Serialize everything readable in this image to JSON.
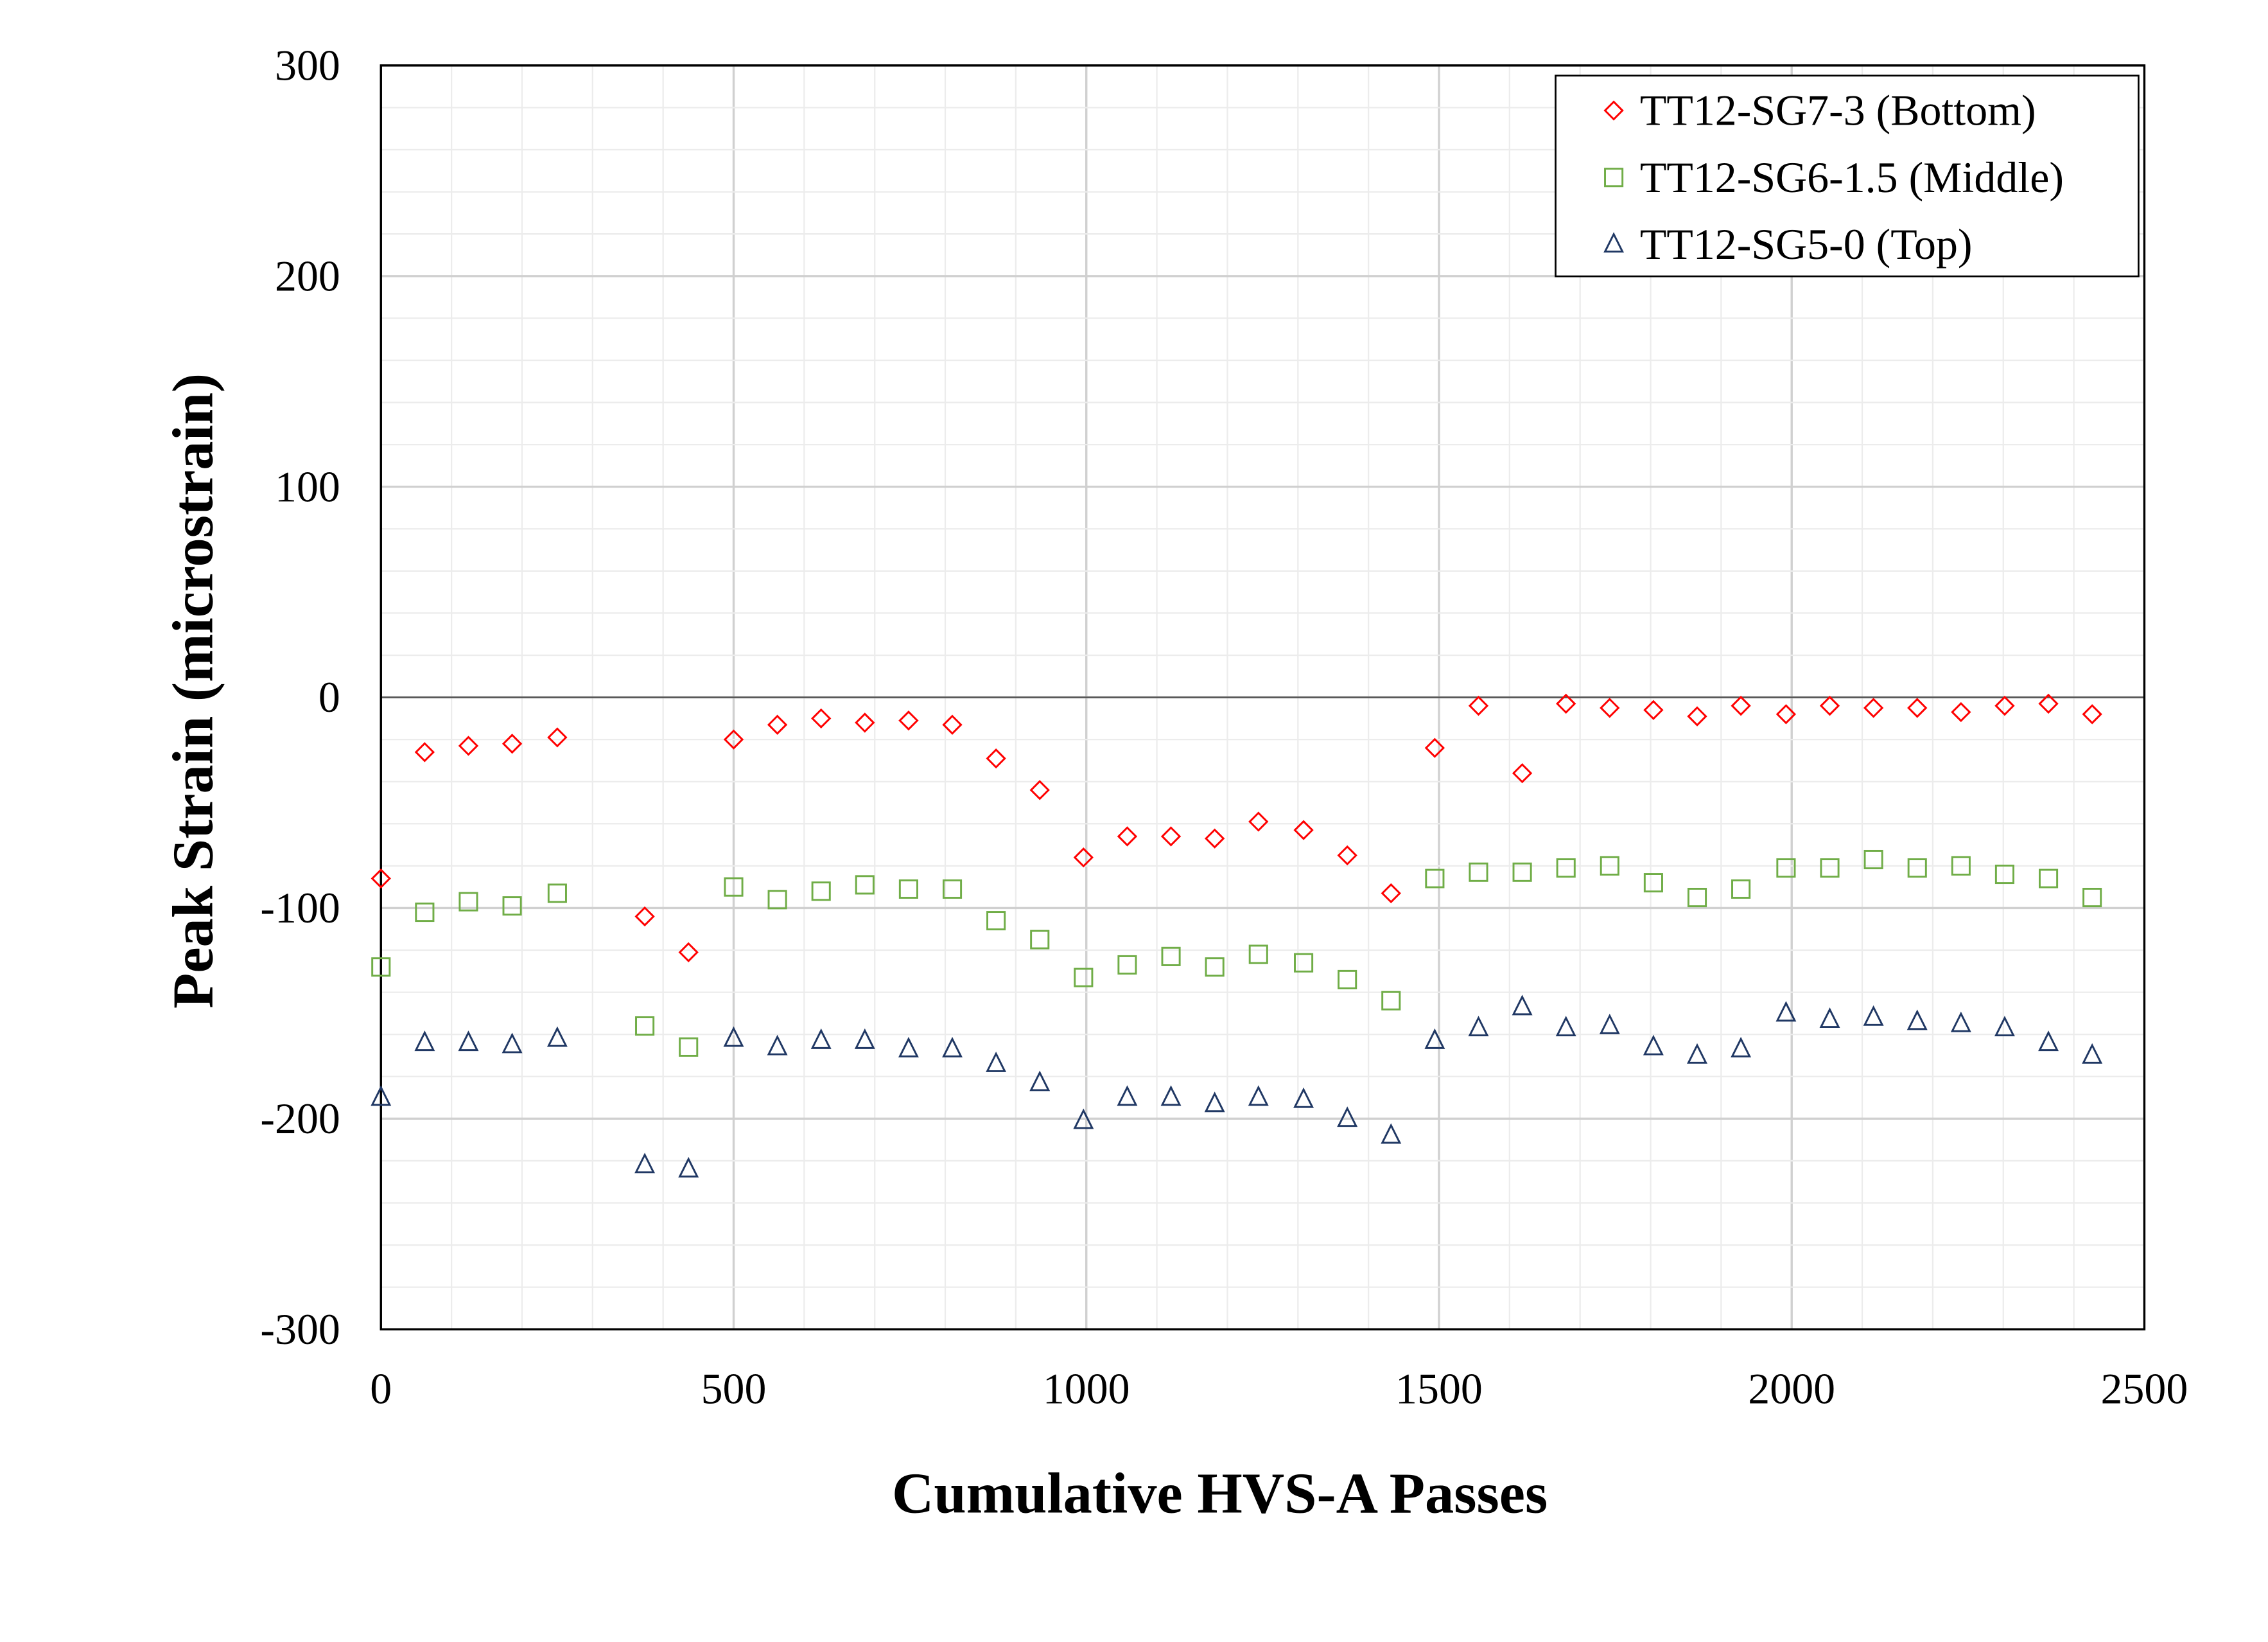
{
  "chart_data": {
    "type": "scatter",
    "title": "",
    "xlabel": "Cumulative HVS-A Passes",
    "ylabel": "Peak Strain (microstrain)",
    "xlim": [
      0,
      2500
    ],
    "ylim": [
      -300,
      300
    ],
    "xticks": [
      0,
      500,
      1000,
      1500,
      2000,
      2500
    ],
    "yticks": [
      300,
      200,
      100,
      0,
      -100,
      -200,
      -300
    ],
    "grid": true,
    "legend_position": "top-right",
    "x": [
      0,
      62,
      124,
      186,
      250,
      374,
      436,
      500,
      562,
      624,
      686,
      748,
      810,
      872,
      934,
      996,
      1058,
      1120,
      1182,
      1244,
      1308,
      1370,
      1432,
      1494,
      1556,
      1618,
      1680,
      1742,
      1804,
      1866,
      1928,
      1992,
      2054,
      2116,
      2178,
      2240,
      2302,
      2364,
      2426
    ],
    "series": [
      {
        "name": "TT12-SG7-3 (Bottom)",
        "marker": "diamond",
        "color": "#ff0000",
        "values": [
          -86,
          -26,
          -23,
          -22,
          -19,
          -104,
          -121,
          -20,
          -13,
          -10,
          -12,
          -11,
          -13,
          -29,
          -44,
          -76,
          -66,
          -66,
          -67,
          -59,
          -63,
          -75,
          -93,
          -24,
          -4,
          -36,
          -3,
          -5,
          -6,
          -9,
          -4,
          -8,
          -4,
          -5,
          -5,
          -7,
          -4,
          -3,
          -8
        ]
      },
      {
        "name": "TT12-SG6-1.5 (Middle)",
        "marker": "square",
        "color": "#70ad47",
        "values": [
          -128,
          -102,
          -97,
          -99,
          -93,
          -156,
          -166,
          -90,
          -96,
          -92,
          -89,
          -91,
          -91,
          -106,
          -115,
          -133,
          -127,
          -123,
          -128,
          -122,
          -126,
          -134,
          -144,
          -86,
          -83,
          -83,
          -81,
          -80,
          -88,
          -95,
          -91,
          -81,
          -81,
          -77,
          -81,
          -80,
          -84,
          -86,
          -95
        ]
      },
      {
        "name": "TT12-SG5-0 (Top)",
        "marker": "triangle",
        "color": "#203864",
        "values": [
          -190,
          -164,
          -164,
          -165,
          -162,
          -222,
          -224,
          -162,
          -166,
          -163,
          -163,
          -167,
          -167,
          -174,
          -183,
          -201,
          -190,
          -190,
          -193,
          -190,
          -191,
          -200,
          -208,
          -163,
          -157,
          -147,
          -157,
          -156,
          -166,
          -170,
          -167,
          -150,
          -153,
          -152,
          -154,
          -155,
          -157,
          -164,
          -170
        ]
      }
    ]
  }
}
